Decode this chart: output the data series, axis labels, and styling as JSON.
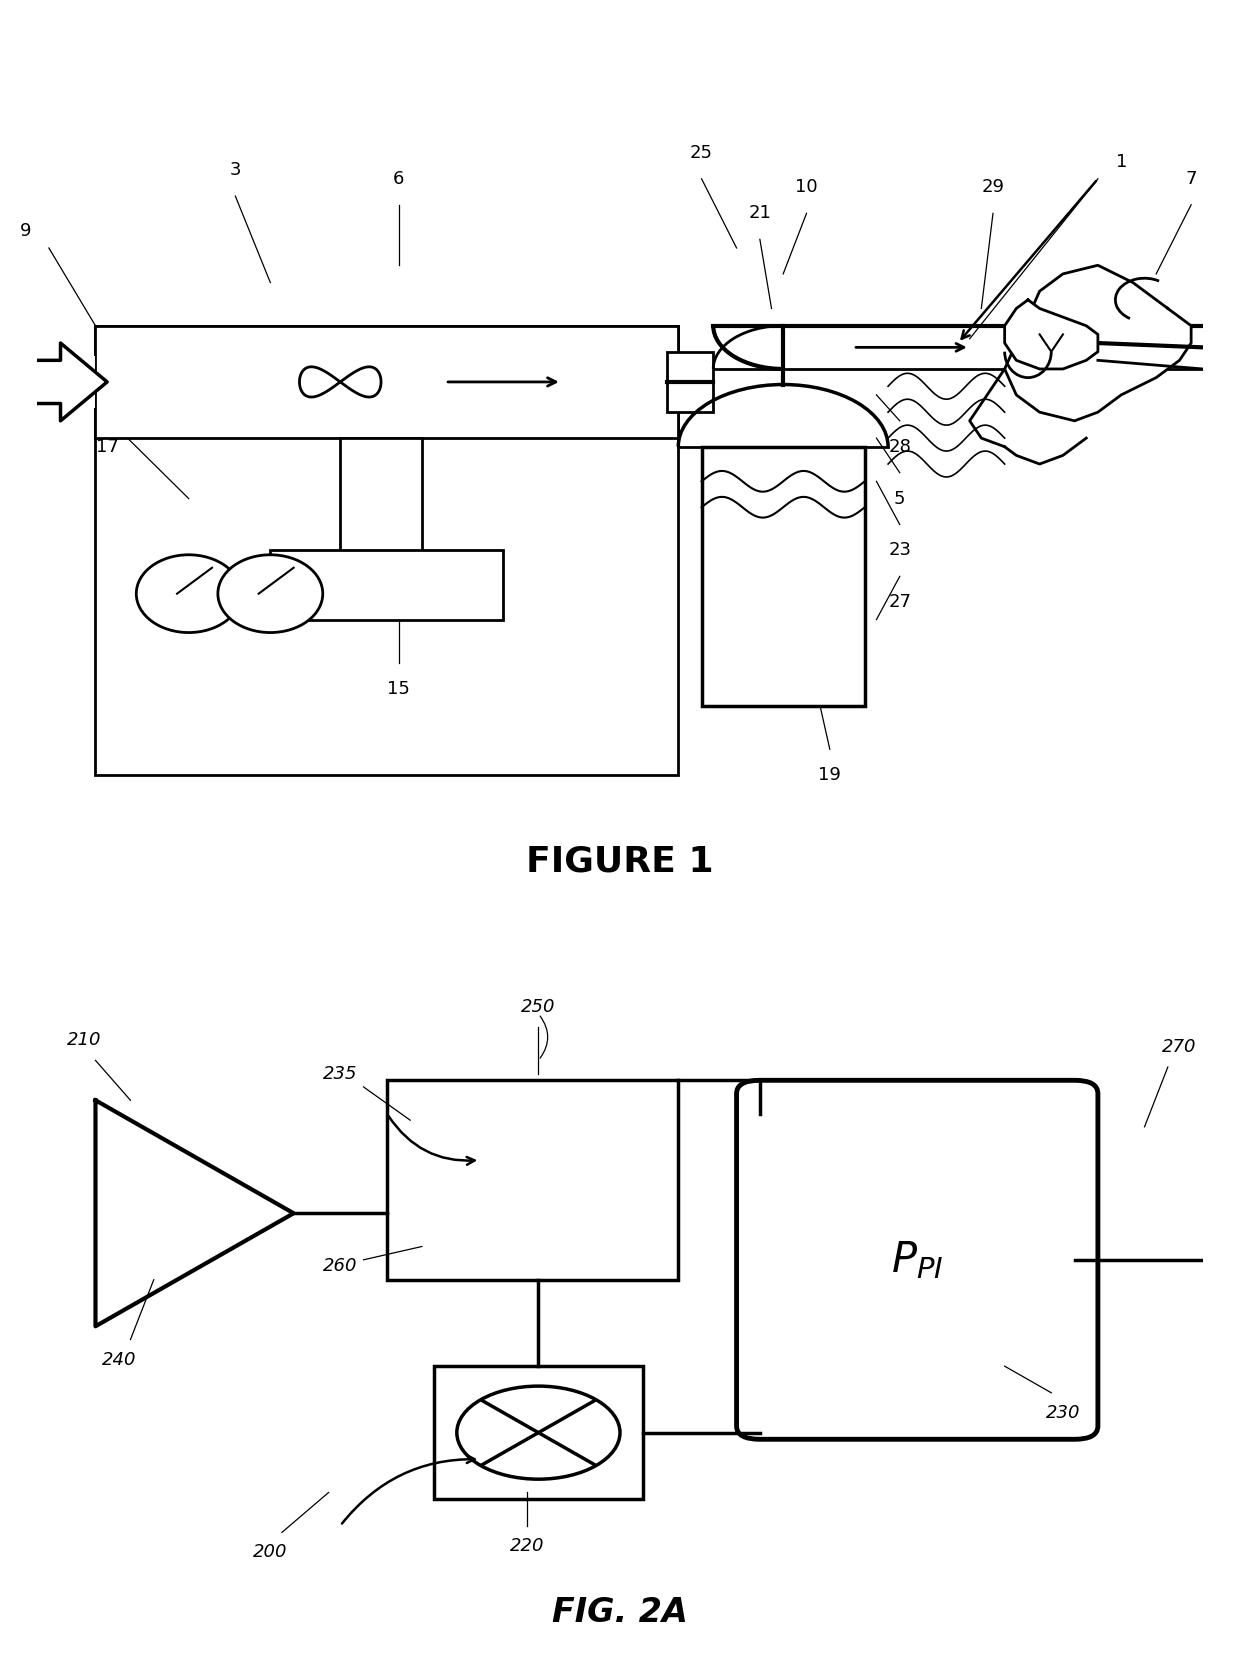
{
  "bg_color": "#ffffff",
  "lc": "#000000",
  "fig_width": 12.4,
  "fig_height": 16.62,
  "fig1_title": "FIGURE 1",
  "fig2_title": "FIG. 2A"
}
